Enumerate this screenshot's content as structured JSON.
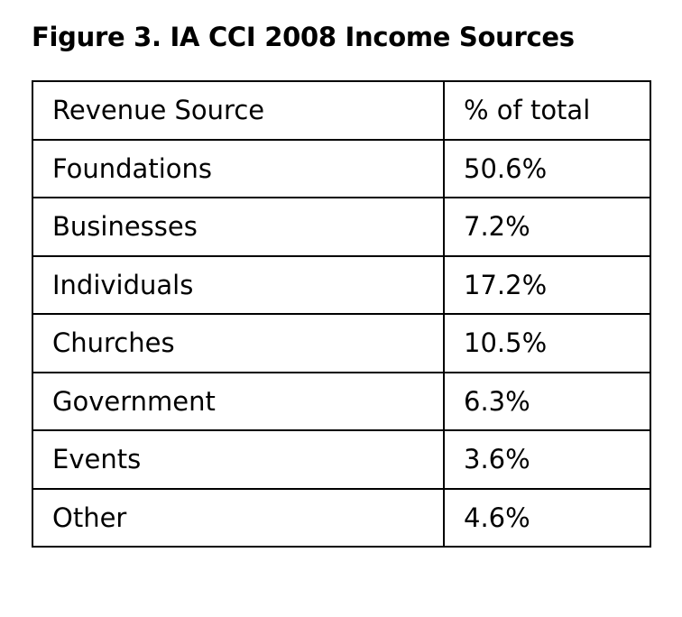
{
  "title": "Figure 3.  IA CCI 2008 Income Sources",
  "table": {
    "headers": [
      "Revenue Source",
      "% of total"
    ],
    "rows": [
      [
        "Foundations",
        "50.6%"
      ],
      [
        "Businesses",
        "7.2%"
      ],
      [
        "Individuals",
        "17.2%"
      ],
      [
        "Churches",
        "10.5%"
      ],
      [
        "Government",
        "6.3%"
      ],
      [
        "Events",
        "3.6%"
      ],
      [
        "Other",
        "4.6%"
      ]
    ]
  }
}
